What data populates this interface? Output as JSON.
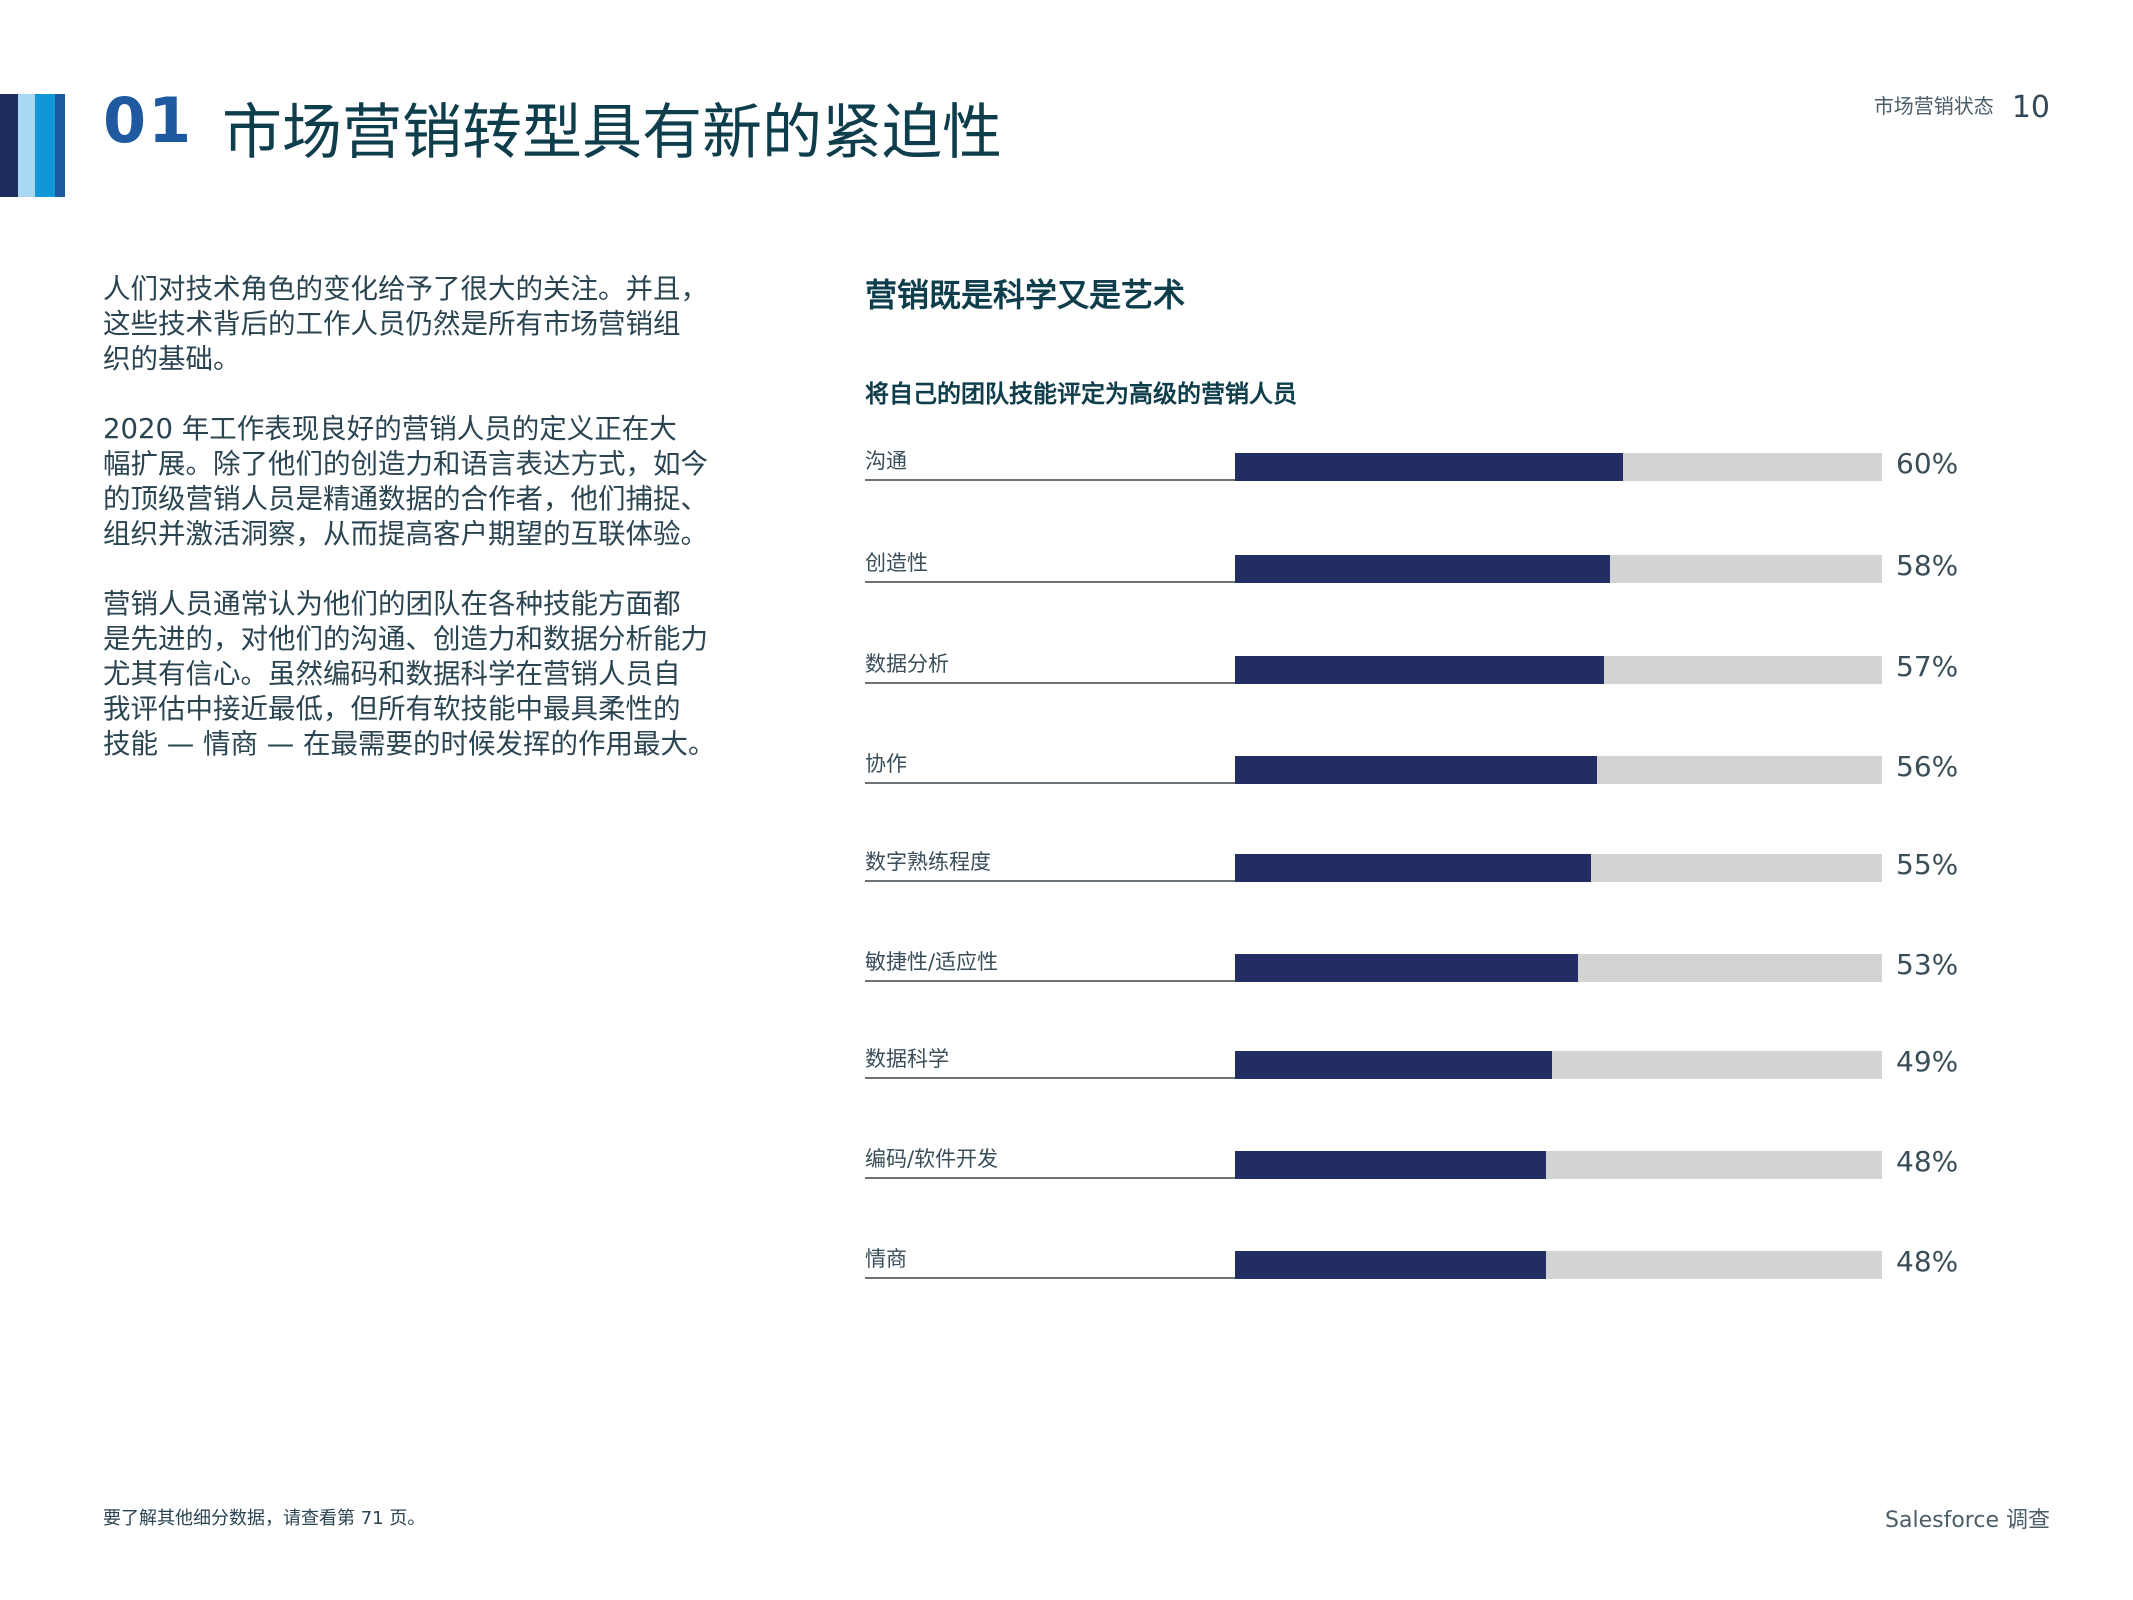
{
  "header": {
    "stripe_colors": [
      "#1f2d5e",
      "#a9d8f5",
      "#1196d6",
      "#1f5aa0"
    ],
    "section_number": "01",
    "title": "市场营销转型具有新的紧迫性",
    "report_name": "市场营销状态",
    "page_number": "10"
  },
  "body": {
    "paragraphs": [
      [
        "人们对技术角色的变化给予了很大的关注。并且，",
        "这些技术背后的工作人员仍然是所有市场营销组",
        "织的基础。"
      ],
      [
        "2020 年工作表现良好的营销人员的定义正在大",
        "幅扩展。除了他们的创造力和语言表达方式，如今",
        "的顶级营销人员是精通数据的合作者，他们捕捉、",
        "组织并激活洞察，从而提高客户期望的互联体验。"
      ],
      [
        "营销人员通常认为他们的团队在各种技能方面都",
        "是先进的，对他们的沟通、创造力和数据分析能力",
        "尤其有信心。虽然编码和数据科学在营销人员自",
        "我评估中接近最低，但所有软技能中最具柔性的",
        "技能 — 情商 — 在最需要的时候发挥的作用最大。"
      ]
    ]
  },
  "chart_data": {
    "type": "bar",
    "orientation": "horizontal",
    "title": "营销既是科学又是艺术",
    "subtitle": "将自己的团队技能评定为高级的营销人员",
    "categories": [
      "沟通",
      "创造性",
      "数据分析",
      "协作",
      "数字熟练程度",
      "敏捷性/适应性",
      "数据科学",
      "编码/软件开发",
      "情商"
    ],
    "values": [
      60,
      58,
      57,
      56,
      55,
      53,
      49,
      48,
      48
    ],
    "value_labels": [
      "60%",
      "58%",
      "57%",
      "56%",
      "55%",
      "53%",
      "49%",
      "48%",
      "48%"
    ],
    "xlim": [
      0,
      100
    ],
    "unit": "%",
    "bar_color": "#222d63",
    "track_color": "#d2d3d3",
    "grid": false
  },
  "footer": {
    "note": "要了解其他细分数据，请查看第 71 页。",
    "source": "Salesforce 调查"
  }
}
